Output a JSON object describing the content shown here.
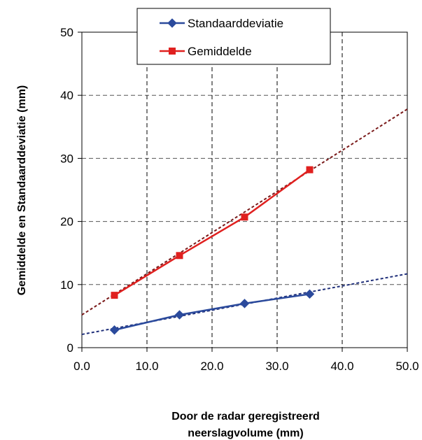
{
  "chart_data": {
    "type": "line",
    "xlabel": [
      "Door de radar geregistreerd",
      "neerslagvolume (mm)"
    ],
    "ylabel": "Gemiddelde en Standaarddeviatie (mm)",
    "xlim": [
      0,
      50
    ],
    "ylim": [
      0,
      50
    ],
    "x_ticks": [
      0,
      10,
      20,
      30,
      40,
      50
    ],
    "x_tick_labels": [
      "0.0",
      "10.0",
      "20.0",
      "30.0",
      "40.0",
      "50.0"
    ],
    "y_ticks": [
      0,
      10,
      20,
      30,
      40,
      50
    ],
    "y_tick_labels": [
      "0",
      "10",
      "20",
      "30",
      "40",
      "50"
    ],
    "grid": "dashed",
    "legend_position": "top-center",
    "series": [
      {
        "name": "Standaarddeviatie",
        "color": "#2b4a9c",
        "marker": "diamond",
        "x": [
          5,
          15,
          25,
          35
        ],
        "y": [
          2.8,
          5.2,
          7.0,
          8.5
        ],
        "trendline": {
          "x": [
            0,
            50
          ],
          "y": [
            2.1,
            11.7
          ],
          "color": "#1f2f7a"
        }
      },
      {
        "name": "Gemiddelde",
        "color": "#e0201f",
        "marker": "square",
        "x": [
          5,
          15,
          25,
          35
        ],
        "y": [
          8.3,
          14.6,
          20.7,
          28.2
        ],
        "trendline": {
          "x": [
            0,
            50
          ],
          "y": [
            5.2,
            37.8
          ],
          "color": "#7a1a1a"
        }
      }
    ]
  }
}
